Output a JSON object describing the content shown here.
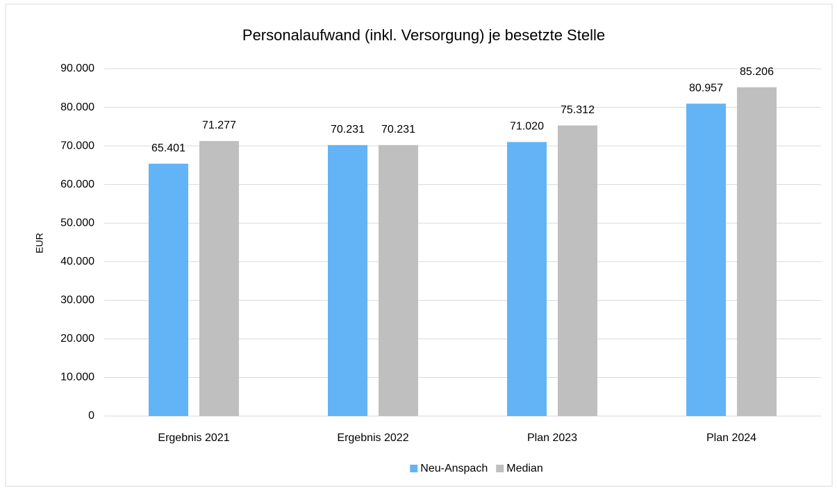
{
  "chart_data": {
    "type": "bar",
    "title": "Personalaufwand (inkl. Versorgung)  je besetzte Stelle",
    "y_label": "EUR",
    "categories": [
      "Ergebnis 2021",
      "Ergebnis 2022",
      "Plan 2023",
      "Plan 2024"
    ],
    "series": [
      {
        "name": "Neu-Anspach",
        "color": "#63b4f6",
        "values": [
          65401,
          70231,
          71020,
          80957
        ],
        "value_labels": [
          "65.401",
          "70.231",
          "71.020",
          "80.957"
        ]
      },
      {
        "name": "Median",
        "color": "#bfbfbf",
        "values": [
          71277,
          70231,
          75312,
          85206
        ],
        "value_labels": [
          "71.277",
          "70.231",
          "75.312",
          "85.206"
        ]
      }
    ],
    "ylim": [
      0,
      90000
    ],
    "yticks": [
      0,
      {
        "value": 10000,
        "label": "10.000"
      },
      {
        "value": 20000,
        "label": "20.000"
      },
      {
        "value": 30000,
        "label": "30.000"
      },
      {
        "value": 40000,
        "label": "40.000"
      },
      {
        "value": 50000,
        "label": "50.000"
      },
      {
        "value": 60000,
        "label": "60.000"
      },
      {
        "value": 70000,
        "label": "70.000"
      },
      {
        "value": 80000,
        "label": "80.000"
      },
      {
        "value": 90000,
        "label": "90.000"
      }
    ],
    "grid": true,
    "legend": "bottom"
  }
}
